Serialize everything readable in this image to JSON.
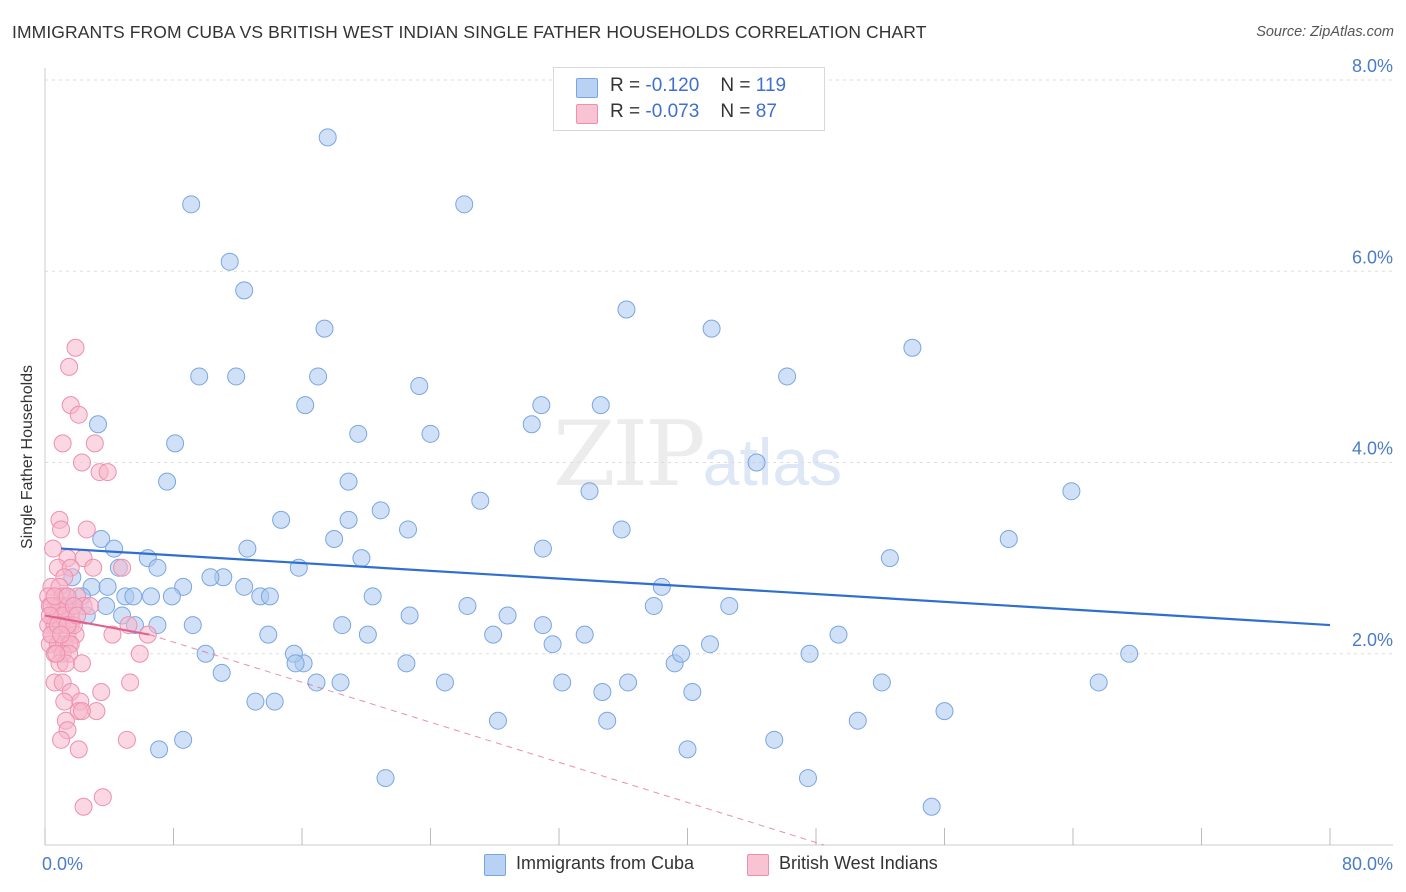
{
  "title": "IMMIGRANTS FROM CUBA VS BRITISH WEST INDIAN SINGLE FATHER HOUSEHOLDS CORRELATION CHART",
  "source": "Source: ZipAtlas.com",
  "watermark": {
    "zip": "ZIP",
    "atlas": "atlas"
  },
  "legend_top": [
    {
      "r_label": "R =",
      "r_value": "-0.120",
      "n_label": "N =",
      "n_value": "119"
    },
    {
      "r_label": "R =",
      "r_value": "-0.073",
      "n_label": "N =",
      "n_value": "87"
    }
  ],
  "colors": {
    "cuba_fill": "#aac8f0",
    "cuba_stroke": "#7aa6e0",
    "cuba_line": "#2f6fcf",
    "bwi_fill": "#f6b7cb",
    "bwi_stroke": "#ee8fae",
    "bwi_line": "#e0608a",
    "grid": "#dddddd",
    "axis_text": "#4a7cc9"
  },
  "chart_data": {
    "type": "scatter",
    "title": "IMMIGRANTS FROM CUBA VS BRITISH WEST INDIAN SINGLE FATHER HOUSEHOLDS CORRELATION CHART",
    "xlabel": "",
    "ylabel": "Single Father Households",
    "xlim": [
      0,
      80
    ],
    "ylim": [
      0,
      8
    ],
    "x_tick_labels": {
      "min": "0.0%",
      "max": "80.0%"
    },
    "y_ticks": [
      {
        "value": 2,
        "label": "2.0%"
      },
      {
        "value": 4,
        "label": "4.0%"
      },
      {
        "value": 6,
        "label": "6.0%"
      },
      {
        "value": 8,
        "label": "8.0%"
      }
    ],
    "grid": true,
    "series": [
      {
        "name": "Immigrants from Cuba",
        "r": -0.12,
        "n": 119,
        "trend": {
          "x0": 1,
          "y0": 3.1,
          "x1": 80,
          "y1": 2.3
        },
        "points": [
          [
            17.6,
            7.4
          ],
          [
            9.1,
            6.7
          ],
          [
            26.1,
            6.7
          ],
          [
            11.5,
            6.1
          ],
          [
            12.4,
            5.8
          ],
          [
            36.2,
            5.6
          ],
          [
            41.5,
            5.4
          ],
          [
            17.4,
            5.4
          ],
          [
            54.0,
            5.2
          ],
          [
            9.6,
            4.9
          ],
          [
            11.9,
            4.9
          ],
          [
            17.0,
            4.9
          ],
          [
            23.3,
            4.8
          ],
          [
            46.2,
            4.9
          ],
          [
            30.9,
            4.6
          ],
          [
            34.6,
            4.6
          ],
          [
            16.2,
            4.6
          ],
          [
            3.3,
            4.4
          ],
          [
            19.5,
            4.3
          ],
          [
            24.0,
            4.3
          ],
          [
            30.3,
            4.4
          ],
          [
            8.1,
            4.2
          ],
          [
            44.3,
            4.0
          ],
          [
            7.6,
            3.8
          ],
          [
            18.9,
            3.8
          ],
          [
            63.9,
            3.7
          ],
          [
            33.9,
            3.7
          ],
          [
            27.1,
            3.6
          ],
          [
            14.7,
            3.4
          ],
          [
            18.9,
            3.4
          ],
          [
            20.9,
            3.5
          ],
          [
            22.6,
            3.3
          ],
          [
            35.9,
            3.3
          ],
          [
            18.0,
            3.2
          ],
          [
            52.6,
            3.0
          ],
          [
            60.0,
            3.2
          ],
          [
            3.5,
            3.2
          ],
          [
            4.3,
            3.1
          ],
          [
            31.0,
            3.1
          ],
          [
            12.6,
            3.1
          ],
          [
            19.7,
            3.0
          ],
          [
            6.4,
            3.0
          ],
          [
            15.8,
            2.9
          ],
          [
            7.0,
            2.9
          ],
          [
            11.1,
            2.8
          ],
          [
            4.6,
            2.9
          ],
          [
            10.3,
            2.8
          ],
          [
            1.7,
            2.8
          ],
          [
            2.9,
            2.7
          ],
          [
            8.6,
            2.7
          ],
          [
            12.4,
            2.7
          ],
          [
            13.4,
            2.6
          ],
          [
            14.0,
            2.6
          ],
          [
            20.4,
            2.6
          ],
          [
            3.9,
            2.7
          ],
          [
            5.0,
            2.6
          ],
          [
            6.6,
            2.6
          ],
          [
            7.9,
            2.6
          ],
          [
            38.4,
            2.7
          ],
          [
            1.3,
            2.6
          ],
          [
            2.3,
            2.6
          ],
          [
            3.8,
            2.5
          ],
          [
            5.5,
            2.6
          ],
          [
            1.7,
            2.5
          ],
          [
            0.9,
            2.4
          ],
          [
            2.6,
            2.4
          ],
          [
            1.2,
            2.4
          ],
          [
            22.7,
            2.4
          ],
          [
            26.3,
            2.5
          ],
          [
            37.9,
            2.5
          ],
          [
            42.6,
            2.5
          ],
          [
            4.8,
            2.4
          ],
          [
            5.6,
            2.3
          ],
          [
            7.0,
            2.3
          ],
          [
            9.2,
            2.3
          ],
          [
            18.5,
            2.3
          ],
          [
            28.8,
            2.4
          ],
          [
            31.0,
            2.3
          ],
          [
            27.9,
            2.2
          ],
          [
            20.1,
            2.2
          ],
          [
            33.6,
            2.2
          ],
          [
            13.9,
            2.2
          ],
          [
            41.4,
            2.1
          ],
          [
            31.6,
            2.1
          ],
          [
            49.4,
            2.2
          ],
          [
            10.0,
            2.0
          ],
          [
            16.1,
            1.9
          ],
          [
            15.5,
            2.0
          ],
          [
            15.6,
            1.9
          ],
          [
            22.5,
            1.9
          ],
          [
            11.0,
            1.8
          ],
          [
            39.2,
            1.9
          ],
          [
            39.6,
            2.0
          ],
          [
            47.6,
            2.0
          ],
          [
            67.5,
            2.0
          ],
          [
            24.9,
            1.7
          ],
          [
            16.9,
            1.7
          ],
          [
            18.4,
            1.7
          ],
          [
            32.2,
            1.7
          ],
          [
            36.3,
            1.7
          ],
          [
            34.7,
            1.6
          ],
          [
            40.3,
            1.6
          ],
          [
            52.1,
            1.7
          ],
          [
            65.6,
            1.7
          ],
          [
            13.1,
            1.5
          ],
          [
            14.3,
            1.5
          ],
          [
            56.0,
            1.4
          ],
          [
            28.2,
            1.3
          ],
          [
            35.0,
            1.3
          ],
          [
            50.6,
            1.3
          ],
          [
            45.4,
            1.1
          ],
          [
            7.1,
            1.0
          ],
          [
            8.6,
            1.1
          ],
          [
            40.0,
            1.0
          ],
          [
            21.2,
            0.7
          ],
          [
            47.5,
            0.7
          ],
          [
            55.2,
            0.4
          ]
        ]
      },
      {
        "name": "British West Indians",
        "r": -0.073,
        "n": 87,
        "trend": {
          "x0": 0,
          "y0": 2.4,
          "x1": 6.5,
          "y1": 2.2
        },
        "trend_extension": {
          "x0": 6.5,
          "y0": 2.2,
          "x1": 48.5,
          "y1": 0.0
        },
        "points": [
          [
            1.9,
            5.2
          ],
          [
            1.5,
            5.0
          ],
          [
            1.6,
            4.6
          ],
          [
            2.1,
            4.5
          ],
          [
            1.1,
            4.2
          ],
          [
            3.1,
            4.2
          ],
          [
            2.3,
            4.0
          ],
          [
            3.4,
            3.9
          ],
          [
            3.9,
            3.9
          ],
          [
            0.9,
            3.4
          ],
          [
            1.0,
            3.3
          ],
          [
            2.6,
            3.3
          ],
          [
            0.5,
            3.1
          ],
          [
            1.4,
            3.0
          ],
          [
            2.4,
            3.0
          ],
          [
            0.8,
            2.9
          ],
          [
            1.6,
            2.9
          ],
          [
            3.0,
            2.9
          ],
          [
            4.8,
            2.9
          ],
          [
            1.2,
            2.8
          ],
          [
            0.4,
            2.7
          ],
          [
            0.9,
            2.7
          ],
          [
            0.2,
            2.6
          ],
          [
            1.1,
            2.6
          ],
          [
            2.0,
            2.6
          ],
          [
            0.7,
            2.5
          ],
          [
            1.2,
            2.5
          ],
          [
            2.4,
            2.5
          ],
          [
            0.3,
            2.5
          ],
          [
            0.5,
            2.4
          ],
          [
            0.8,
            2.4
          ],
          [
            1.3,
            2.4
          ],
          [
            1.6,
            2.4
          ],
          [
            0.2,
            2.3
          ],
          [
            0.6,
            2.3
          ],
          [
            1.0,
            2.3
          ],
          [
            1.6,
            2.3
          ],
          [
            0.4,
            2.2
          ],
          [
            1.4,
            2.2
          ],
          [
            1.9,
            2.2
          ],
          [
            0.3,
            2.1
          ],
          [
            0.8,
            2.1
          ],
          [
            1.2,
            2.1
          ],
          [
            1.5,
            2.1
          ],
          [
            1.6,
            2.1
          ],
          [
            0.6,
            2.0
          ],
          [
            1.1,
            2.0
          ],
          [
            1.5,
            2.0
          ],
          [
            2.3,
            1.9
          ],
          [
            0.9,
            1.9
          ],
          [
            1.3,
            1.9
          ],
          [
            0.6,
            1.7
          ],
          [
            1.1,
            1.7
          ],
          [
            1.6,
            1.6
          ],
          [
            3.5,
            1.6
          ],
          [
            5.3,
            1.7
          ],
          [
            1.2,
            1.5
          ],
          [
            2.2,
            1.5
          ],
          [
            2.1,
            1.4
          ],
          [
            3.2,
            1.4
          ],
          [
            1.3,
            1.3
          ],
          [
            2.3,
            1.4
          ],
          [
            1.4,
            1.2
          ],
          [
            1.0,
            1.1
          ],
          [
            5.1,
            1.1
          ],
          [
            2.1,
            1.0
          ],
          [
            3.6,
            0.5
          ],
          [
            2.4,
            0.4
          ],
          [
            5.9,
            2.0
          ],
          [
            4.2,
            2.2
          ],
          [
            6.4,
            2.2
          ],
          [
            5.2,
            2.3
          ],
          [
            0.4,
            2.2
          ],
          [
            0.7,
            2.0
          ],
          [
            0.9,
            2.5
          ],
          [
            0.4,
            2.5
          ],
          [
            1.1,
            2.4
          ],
          [
            1.8,
            2.3
          ],
          [
            0.6,
            2.6
          ],
          [
            0.3,
            2.4
          ],
          [
            1.4,
            2.6
          ],
          [
            2.8,
            2.5
          ],
          [
            1.8,
            2.5
          ],
          [
            0.8,
            2.3
          ],
          [
            1.4,
            2.3
          ],
          [
            2.0,
            2.4
          ],
          [
            1.0,
            2.2
          ]
        ]
      }
    ]
  }
}
